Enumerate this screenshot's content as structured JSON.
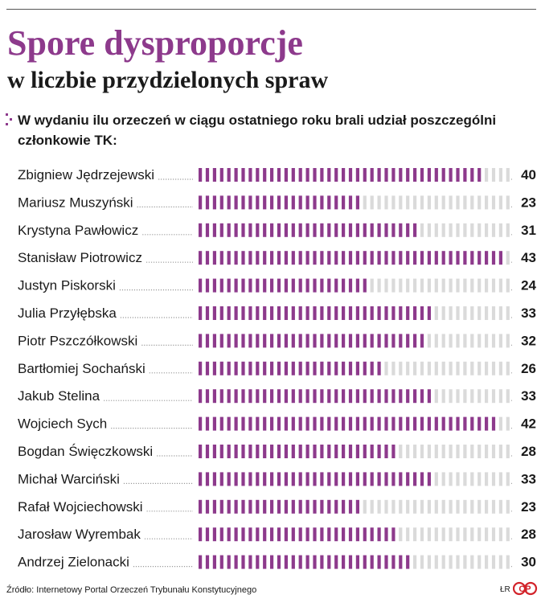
{
  "header": {
    "title": "Spore dysproporcje",
    "subtitle": "w liczbie przydzielonych spraw",
    "question": "W wydaniu ilu orzeczeń w ciągu ostatniego roku brali udział poszczególni członkowie TK:"
  },
  "footer": {
    "source": "Źródło: Internetowy Portal Orzeczeń Trybunału Konstytucyjnego",
    "author": "ŁR",
    "logo_text": "CP"
  },
  "colors": {
    "filled": "#8d3a8c",
    "empty": "#dadada",
    "title": "#8d3a8c",
    "text": "#1a1a1a",
    "leader": "#9a9a9a"
  },
  "chart_data": {
    "type": "bar",
    "orientation": "horizontal",
    "style": "tally-marks",
    "max_marks": 44,
    "categories": [
      "Zbigniew Jędrzejewski",
      "Mariusz Muszyński",
      "Krystyna Pawłowicz",
      "Stanisław Piotrowicz",
      "Justyn Piskorski",
      "Julia Przyłębska",
      "Piotr Pszczółkowski",
      "Bartłomiej Sochański",
      "Jakub Stelina",
      "Wojciech Sych",
      "Bogdan Święczkowski",
      "Michał Warciński",
      "Rafał Wojciechowski",
      "Jarosław Wyrembak",
      "Andrzej Zielonacki"
    ],
    "values": [
      40,
      23,
      31,
      43,
      24,
      33,
      32,
      26,
      33,
      42,
      28,
      33,
      23,
      28,
      30
    ],
    "grid": false,
    "legend": "none"
  }
}
